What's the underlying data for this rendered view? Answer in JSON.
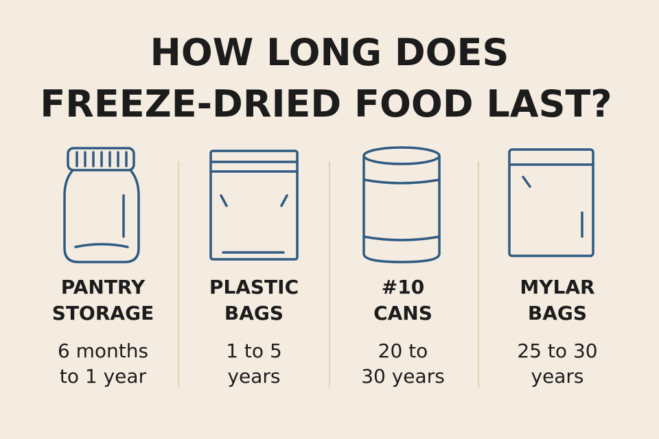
{
  "title": [
    "HOW LONG DOES",
    "FREEZE-DRIED FOOD LAST?"
  ],
  "items": [
    {
      "label": [
        "PANTRY",
        "STORAGE"
      ],
      "duration": [
        "6 months",
        "to 1 year"
      ]
    },
    {
      "label": [
        "PLASTIC",
        "BAGS"
      ],
      "duration": [
        "1 to 5",
        "years"
      ]
    },
    {
      "label": [
        "#10",
        "CANS"
      ],
      "duration": [
        "20 to",
        "30 years"
      ]
    },
    {
      "label": [
        "MYLAR",
        "BAGS"
      ],
      "duration": [
        "25 to 30",
        "years"
      ]
    }
  ]
}
